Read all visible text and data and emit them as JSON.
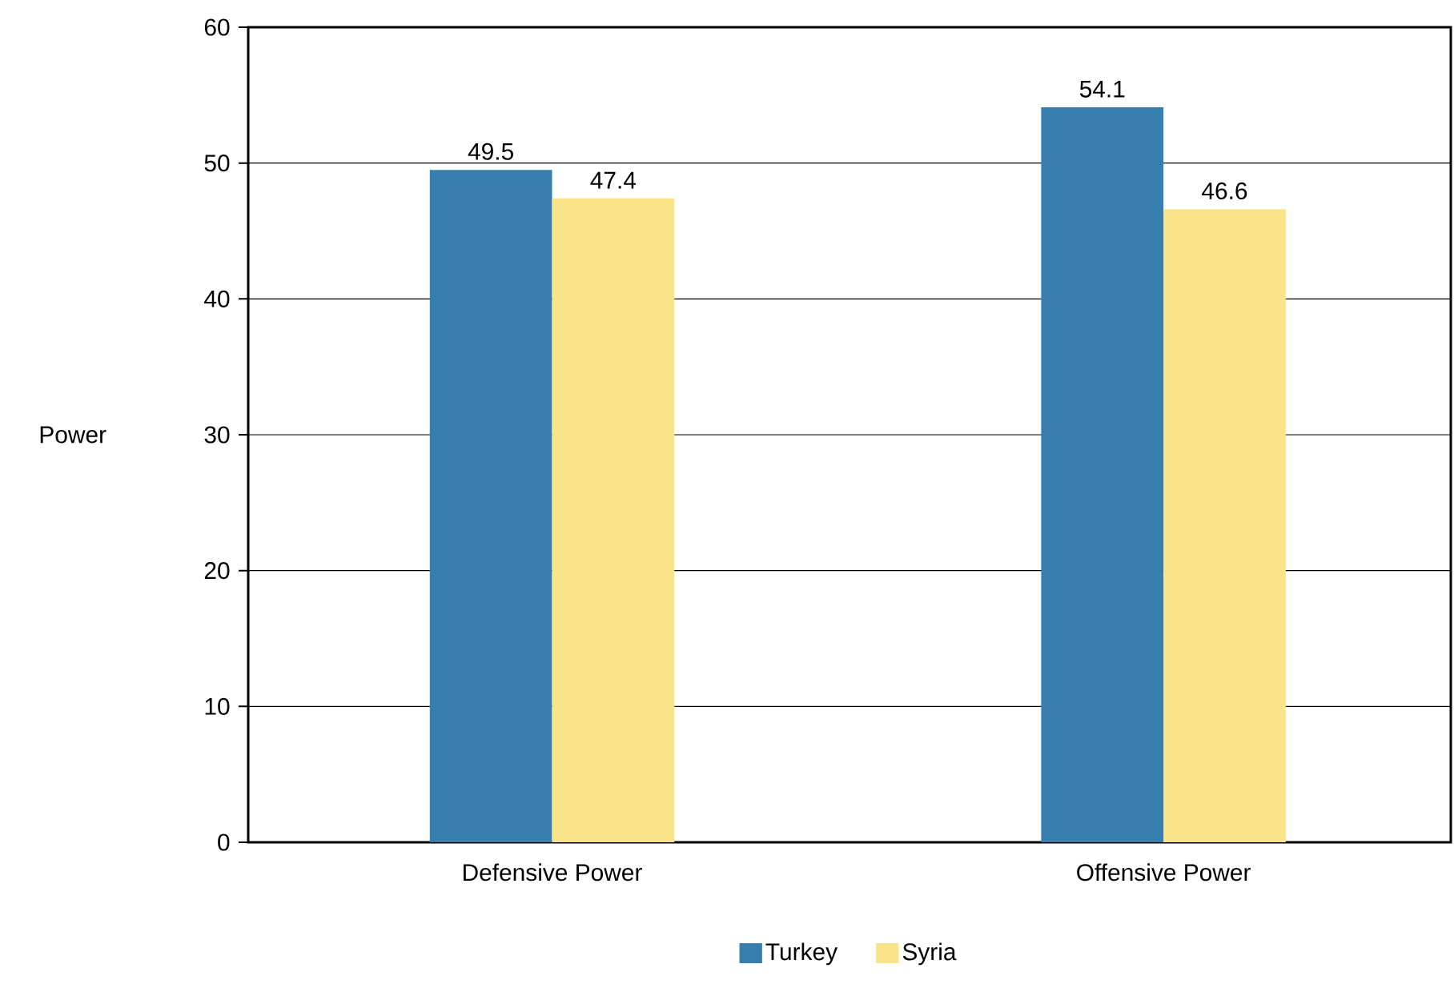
{
  "chart_data": {
    "type": "bar",
    "ylabel": "Power",
    "categories": [
      "Defensive Power",
      "Offensive Power"
    ],
    "series": [
      {
        "name": "Turkey",
        "color": "#357eae",
        "values": [
          49.5,
          54.1
        ]
      },
      {
        "name": "Syria",
        "color": "#fae48a",
        "values": [
          47.4,
          46.6
        ]
      }
    ],
    "ylim": [
      0,
      60
    ],
    "yticks": [
      0,
      10,
      20,
      30,
      40,
      50,
      60
    ],
    "grid": "y",
    "legend": "bottom",
    "data_labels": true
  }
}
